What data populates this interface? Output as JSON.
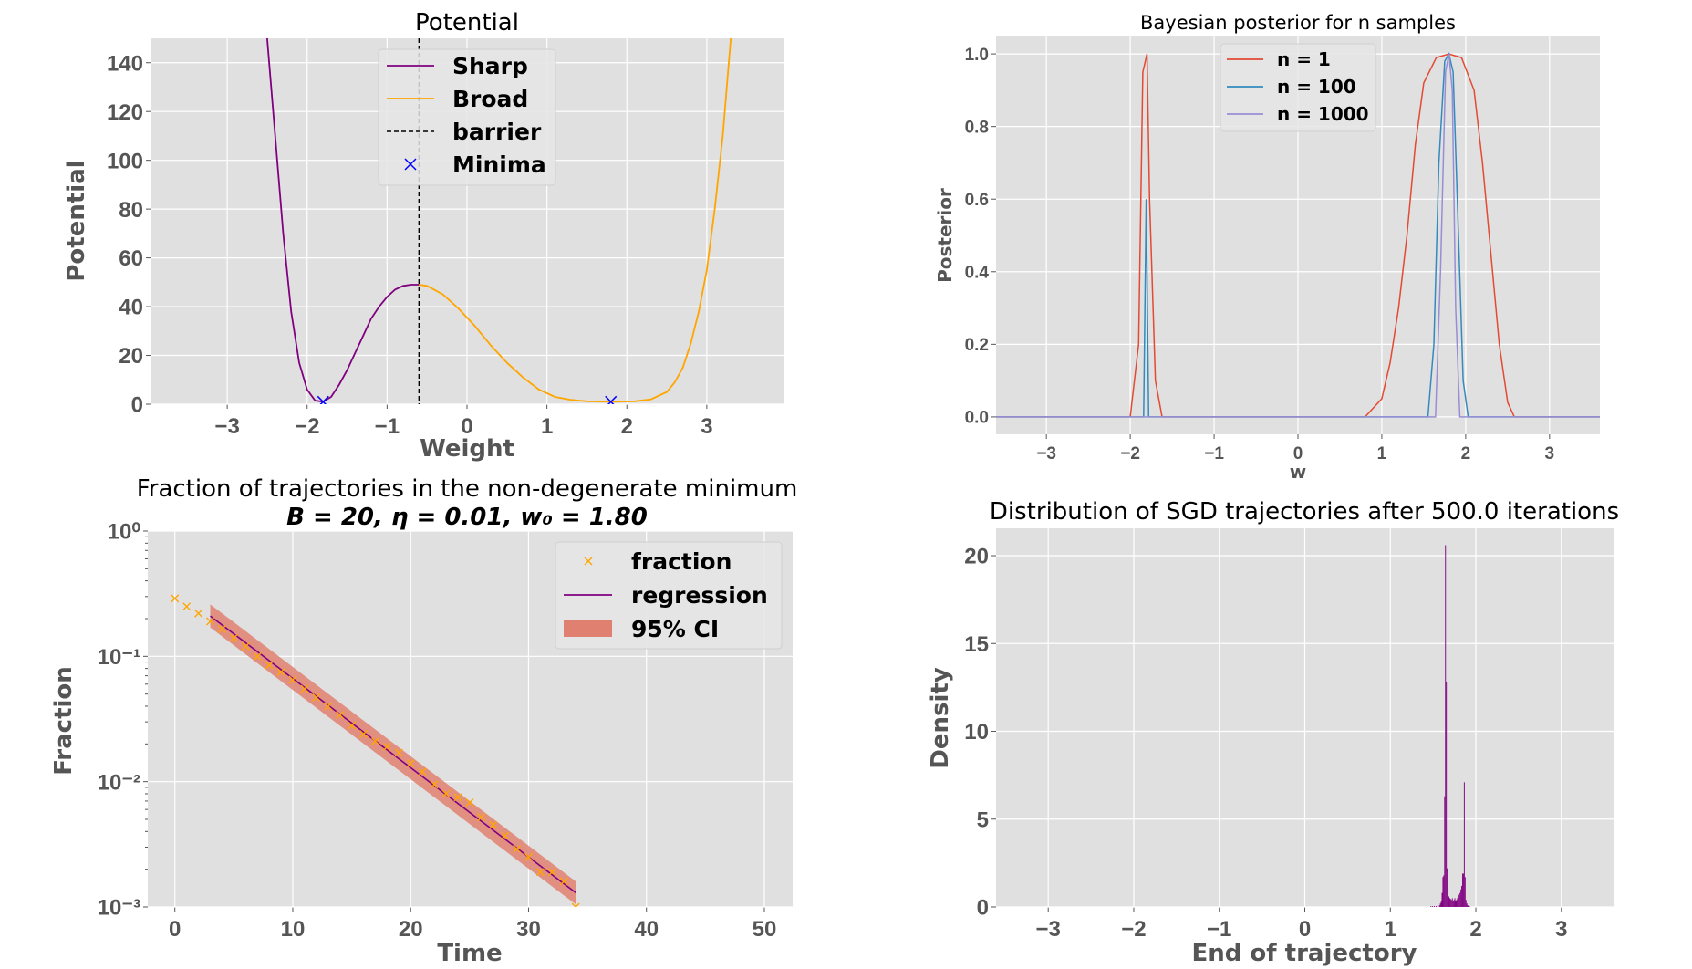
{
  "chart_data": [
    {
      "type": "line",
      "title": "Potential",
      "xlabel": "Weight",
      "ylabel": "Potential",
      "xlim": [
        -3.96,
        3.96
      ],
      "ylim": [
        0,
        150
      ],
      "xticks": [
        -3,
        -2,
        -1,
        0,
        1,
        2,
        3
      ],
      "xtick_labels": [
        "−3",
        "−2",
        "−1",
        "0",
        "1",
        "2",
        "3"
      ],
      "yticks": [
        0,
        20,
        40,
        60,
        80,
        100,
        120,
        140
      ],
      "ytick_labels": [
        "0",
        "20",
        "40",
        "60",
        "80",
        "100",
        "120",
        "140"
      ],
      "grid": true,
      "legend_position": "top-center",
      "series": [
        {
          "name": "Sharp",
          "color": "#800080",
          "points": [
            [
              -2.5,
              150
            ],
            [
              -2.4,
              110
            ],
            [
              -2.3,
              70
            ],
            [
              -2.2,
              38
            ],
            [
              -2.1,
              17
            ],
            [
              -2.0,
              6
            ],
            [
              -1.9,
              1.5
            ],
            [
              -1.8,
              1
            ],
            [
              -1.7,
              3
            ],
            [
              -1.6,
              8
            ],
            [
              -1.5,
              14
            ],
            [
              -1.4,
              21
            ],
            [
              -1.3,
              28
            ],
            [
              -1.2,
              35
            ],
            [
              -1.1,
              40
            ],
            [
              -1.0,
              44
            ],
            [
              -0.9,
              47
            ],
            [
              -0.8,
              48.5
            ],
            [
              -0.7,
              49
            ],
            [
              -0.6,
              49
            ]
          ]
        },
        {
          "name": "Broad",
          "color": "#FFA500",
          "points": [
            [
              -0.6,
              49
            ],
            [
              -0.5,
              48.5
            ],
            [
              -0.3,
              45
            ],
            [
              -0.1,
              39
            ],
            [
              0.1,
              32
            ],
            [
              0.3,
              24
            ],
            [
              0.5,
              17
            ],
            [
              0.7,
              11
            ],
            [
              0.9,
              6
            ],
            [
              1.1,
              3
            ],
            [
              1.3,
              1.8
            ],
            [
              1.5,
              1.2
            ],
            [
              1.8,
              1
            ],
            [
              2.1,
              1.2
            ],
            [
              2.3,
              2
            ],
            [
              2.5,
              5
            ],
            [
              2.6,
              9
            ],
            [
              2.7,
              15
            ],
            [
              2.8,
              25
            ],
            [
              2.9,
              38
            ],
            [
              3.0,
              55
            ],
            [
              3.1,
              80
            ],
            [
              3.2,
              110
            ],
            [
              3.3,
              150
            ]
          ]
        }
      ],
      "barrier": {
        "name": "barrier",
        "x": -0.6,
        "color": "#000000"
      },
      "minima": {
        "name": "Minima",
        "color": "#0000FF",
        "points": [
          [
            -1.8,
            1
          ],
          [
            1.8,
            1
          ]
        ]
      }
    },
    {
      "type": "line",
      "title": "Bayesian posterior for n samples",
      "xlabel": "w",
      "ylabel": "Posterior",
      "xlim": [
        -3.6,
        3.6
      ],
      "ylim": [
        -0.048,
        1.048
      ],
      "xticks": [
        -3,
        -2,
        -1,
        0,
        1,
        2,
        3
      ],
      "xtick_labels": [
        "−3",
        "−2",
        "−1",
        "0",
        "1",
        "2",
        "3"
      ],
      "yticks": [
        0,
        0.2,
        0.4,
        0.6,
        0.8,
        1.0
      ],
      "ytick_labels": [
        "0.0",
        "0.2",
        "0.4",
        "0.6",
        "0.8",
        "1.0"
      ],
      "grid": true,
      "legend_position": "top-center",
      "series": [
        {
          "name": "n = 1",
          "color": "#E24A33",
          "points": [
            [
              -3.6,
              0
            ],
            [
              -2.0,
              0
            ],
            [
              -1.9,
              0.2
            ],
            [
              -1.85,
              0.95
            ],
            [
              -1.8,
              1.0
            ],
            [
              -1.77,
              0.6
            ],
            [
              -1.7,
              0.1
            ],
            [
              -1.62,
              0
            ],
            [
              0.8,
              0
            ],
            [
              1.0,
              0.05
            ],
            [
              1.1,
              0.15
            ],
            [
              1.2,
              0.3
            ],
            [
              1.3,
              0.5
            ],
            [
              1.4,
              0.75
            ],
            [
              1.5,
              0.92
            ],
            [
              1.65,
              0.99
            ],
            [
              1.8,
              1.0
            ],
            [
              1.95,
              0.99
            ],
            [
              2.1,
              0.9
            ],
            [
              2.2,
              0.7
            ],
            [
              2.3,
              0.45
            ],
            [
              2.4,
              0.2
            ],
            [
              2.5,
              0.04
            ],
            [
              2.58,
              0
            ],
            [
              3.6,
              0
            ]
          ]
        },
        {
          "name": "n = 100",
          "color": "#348ABD",
          "points": [
            [
              -3.6,
              0
            ],
            [
              -1.84,
              0
            ],
            [
              -1.81,
              0.6
            ],
            [
              -1.78,
              0
            ],
            [
              1.55,
              0
            ],
            [
              1.62,
              0.2
            ],
            [
              1.68,
              0.7
            ],
            [
              1.75,
              0.98
            ],
            [
              1.8,
              1.0
            ],
            [
              1.85,
              0.95
            ],
            [
              1.9,
              0.6
            ],
            [
              1.97,
              0.1
            ],
            [
              2.03,
              0
            ],
            [
              3.6,
              0
            ]
          ]
        },
        {
          "name": "n = 1000",
          "color": "#988ED5",
          "points": [
            [
              -3.6,
              0
            ],
            [
              1.64,
              0
            ],
            [
              1.7,
              0.4
            ],
            [
              1.76,
              0.95
            ],
            [
              1.8,
              1.0
            ],
            [
              1.84,
              0.9
            ],
            [
              1.88,
              0.3
            ],
            [
              1.93,
              0
            ],
            [
              3.6,
              0
            ]
          ]
        }
      ]
    },
    {
      "type": "scatter",
      "title": "Fraction of trajectories in the non-degenerate minimum",
      "subtitle": "B = 20, η = 0.01, w₀ = 1.80",
      "xlabel": "Time",
      "ylabel": "Fraction",
      "yscale": "log",
      "xlim": [
        -2.3,
        52.4
      ],
      "ylim": [
        0.001,
        1
      ],
      "xticks": [
        0,
        10,
        20,
        30,
        40,
        50
      ],
      "xtick_labels": [
        "0",
        "10",
        "20",
        "30",
        "40",
        "50"
      ],
      "yticks": [
        1,
        0.1,
        0.01,
        0.001
      ],
      "ytick_labels": [
        "10⁰",
        "10⁻¹",
        "10⁻²",
        "10⁻³"
      ],
      "grid": true,
      "legend_position": "top-right",
      "fraction": {
        "name": "fraction",
        "color": "#FFA500",
        "x": [
          0,
          1,
          2,
          3,
          4,
          5,
          6,
          7,
          8,
          9,
          10,
          11,
          12,
          13,
          14,
          15,
          16,
          17,
          18,
          19,
          20,
          21,
          22,
          23,
          24,
          25,
          26,
          27,
          28,
          29,
          30,
          31,
          32,
          33,
          34
        ],
        "y": [
          0.29,
          0.25,
          0.22,
          0.19,
          0.165,
          0.14,
          0.12,
          0.1,
          0.085,
          0.075,
          0.065,
          0.055,
          0.047,
          0.04,
          0.034,
          0.028,
          0.024,
          0.021,
          0.019,
          0.017,
          0.014,
          0.012,
          0.0095,
          0.008,
          0.0075,
          0.0068,
          0.0052,
          0.0045,
          0.0037,
          0.0029,
          0.0025,
          0.0019,
          0.0019,
          0.0016,
          0.001
        ]
      },
      "regression": {
        "name": "regression",
        "color": "#800080",
        "x": [
          3,
          34
        ],
        "y": [
          0.21,
          0.0013
        ]
      },
      "ci": {
        "name": "95% CI",
        "color": "#E08070",
        "x": [
          3,
          34
        ],
        "upper": [
          0.26,
          0.0016
        ],
        "lower": [
          0.17,
          0.00105
        ]
      }
    },
    {
      "type": "bar",
      "title": "Distribution of SGD trajectories after 500.0 iterations",
      "xlabel": "End of trajectory",
      "ylabel": "Density",
      "xlim": [
        -3.61,
        3.61
      ],
      "ylim": [
        0,
        21.56
      ],
      "xticks": [
        -3,
        -2,
        -1,
        0,
        1,
        2,
        3
      ],
      "xtick_labels": [
        "−3",
        "−2",
        "−1",
        "0",
        "1",
        "2",
        "3"
      ],
      "yticks": [
        0,
        5,
        10,
        15,
        20
      ],
      "ytick_labels": [
        "0",
        "5",
        "10",
        "15",
        "20"
      ],
      "grid": true,
      "color": "#800080",
      "bin_width": 0.01,
      "bins": [
        1.47,
        1.49,
        1.51,
        1.53,
        1.55,
        1.57,
        1.58,
        1.59,
        1.6,
        1.61,
        1.62,
        1.63,
        1.64,
        1.65,
        1.66,
        1.67,
        1.68,
        1.69,
        1.7,
        1.71,
        1.72,
        1.73,
        1.74,
        1.75,
        1.76,
        1.77,
        1.78,
        1.79,
        1.8,
        1.81,
        1.82,
        1.83,
        1.84,
        1.85,
        1.86,
        1.87,
        1.88,
        1.89,
        1.9,
        1.91,
        1.92
      ],
      "values": [
        0.05,
        0.05,
        0.05,
        0.05,
        0.05,
        0.1,
        0.2,
        0.3,
        0.8,
        1.7,
        1.8,
        6.3,
        20.6,
        12.8,
        2.2,
        1.0,
        0.6,
        0.5,
        0.45,
        0.4,
        0.5,
        0.35,
        0.4,
        0.5,
        0.35,
        0.4,
        0.5,
        0.6,
        0.7,
        0.8,
        1.0,
        1.2,
        1.9,
        1.9,
        7.1,
        1.7,
        0.4,
        0.2,
        0.1,
        0.05,
        0.05
      ]
    }
  ]
}
